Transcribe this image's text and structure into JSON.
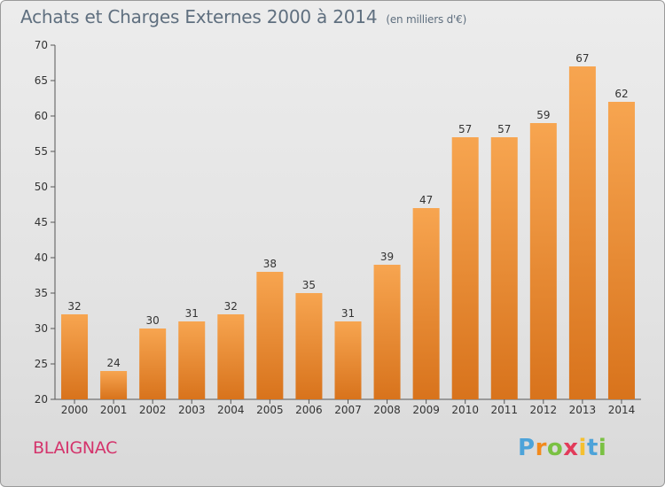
{
  "title": "Achats et Charges Externes 2000 à 2014",
  "subtitle": "(en milliers d'€)",
  "city": "BLAIGNAC",
  "logo": "Proxiti",
  "colors": {
    "bar_top": "#f7a550",
    "bar_bottom": "#d8731c",
    "title": "#5f6f7f",
    "city": "#d4336b"
  },
  "chart_data": {
    "type": "bar",
    "title": "Achats et Charges Externes 2000 à 2014",
    "subtitle": "(en milliers d'€)",
    "categories": [
      "2000",
      "2001",
      "2002",
      "2003",
      "2004",
      "2005",
      "2006",
      "2007",
      "2008",
      "2009",
      "2010",
      "2011",
      "2012",
      "2013",
      "2014"
    ],
    "values": [
      32,
      24,
      30,
      31,
      32,
      38,
      35,
      31,
      39,
      47,
      57,
      57,
      59,
      67,
      62
    ],
    "ylim": [
      20,
      70
    ],
    "yticks": [
      20,
      25,
      30,
      35,
      40,
      45,
      50,
      55,
      60,
      65,
      70
    ],
    "grid": false,
    "data_labels": true
  }
}
